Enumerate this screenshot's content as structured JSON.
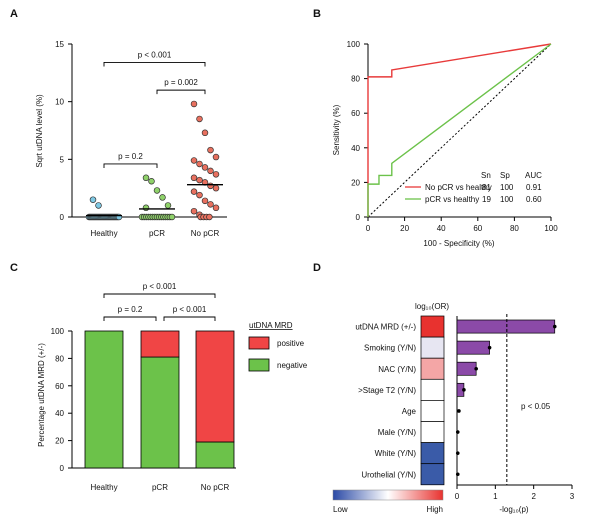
{
  "chart_data": [
    {
      "panel": "A",
      "type": "scatter",
      "ylabel": "Sqrt utDNA level (%)",
      "ylim": [
        0,
        15
      ],
      "yticks": [
        0,
        5,
        10,
        15
      ],
      "categories": [
        "Healthy",
        "pCR",
        "No pCR"
      ],
      "colors": [
        "#7ec8e3",
        "#8fd16a",
        "#e8705f"
      ],
      "groups": [
        {
          "name": "Healthy",
          "mean": 0.12,
          "values": [
            1.5,
            1.0,
            0,
            0,
            0,
            0,
            0,
            0,
            0,
            0,
            0,
            0,
            0,
            0,
            0,
            0,
            0,
            0,
            0,
            0,
            0,
            0,
            0,
            0,
            0,
            0,
            0,
            0,
            0,
            0
          ]
        },
        {
          "name": "pCR",
          "mean": 0.7,
          "values": [
            3.4,
            3.1,
            2.3,
            1.7,
            1.0,
            0.8,
            0,
            0,
            0,
            0,
            0,
            0,
            0,
            0,
            0,
            0,
            0,
            0,
            0,
            0,
            0
          ]
        },
        {
          "name": "No pCR",
          "mean": 2.8,
          "values": [
            9.8,
            8.5,
            7.3,
            5.8,
            5.2,
            4.9,
            4.6,
            4.3,
            4.0,
            3.7,
            3.4,
            3.2,
            3.0,
            2.7,
            2.5,
            2.2,
            1.9,
            1.4,
            1.1,
            0.8,
            0.5,
            0.2,
            0,
            0,
            0,
            0
          ]
        }
      ],
      "comparisons": [
        {
          "label": "p < 0.001",
          "from": "Healthy",
          "to": "No pCR",
          "y": 13.4
        },
        {
          "label": "p = 0.002",
          "from": "pCR",
          "to": "No pCR",
          "y": 11.0
        },
        {
          "label": "p = 0.2",
          "from": "Healthy",
          "to": "pCR",
          "y": 4.6
        }
      ]
    },
    {
      "panel": "B",
      "type": "line",
      "xlabel": "100 - Specificity (%)",
      "ylabel": "Sensitivity (%)",
      "xlim": [
        0,
        100
      ],
      "ylim": [
        0,
        100
      ],
      "xticks": [
        0,
        20,
        40,
        60,
        80,
        100
      ],
      "yticks": [
        0,
        20,
        40,
        60,
        80,
        100
      ],
      "table_headers": [
        "Sn",
        "Sp",
        "AUC"
      ],
      "series": [
        {
          "name": "No pCR vs healthy",
          "color": "#e83a3a",
          "sn": "81",
          "sp": "100",
          "auc": "0.91",
          "x": [
            0,
            0,
            0,
            0,
            13,
            13,
            100
          ],
          "y": [
            0,
            73,
            81,
            81,
            81,
            85,
            100
          ]
        },
        {
          "name": "pCR vs healthy",
          "color": "#6cc24a",
          "sn": "19",
          "sp": "100",
          "auc": "0.60",
          "x": [
            0,
            0,
            6,
            6,
            13,
            13,
            100
          ],
          "y": [
            0,
            19,
            19,
            24,
            24,
            31,
            100
          ]
        }
      ],
      "reference_line": {
        "x": [
          0,
          100
        ],
        "y": [
          0,
          100
        ]
      }
    },
    {
      "panel": "C",
      "type": "bar",
      "stacked": true,
      "ylabel": "Percentage utDNA MRD (+/-)",
      "ylim": [
        0,
        100
      ],
      "yticks": [
        0,
        20,
        40,
        60,
        80,
        100
      ],
      "categories": [
        "Healthy",
        "pCR",
        "No pCR"
      ],
      "legend_title": "utDNA MRD",
      "series": [
        {
          "name": "negative",
          "color": "#6cc24a",
          "values": [
            100,
            81,
            19
          ]
        },
        {
          "name": "positive",
          "color": "#f04545",
          "values": [
            0,
            19,
            81
          ]
        }
      ],
      "comparisons": [
        {
          "label": "p < 0.001",
          "from": "Healthy",
          "to": "No pCR"
        },
        {
          "label": "p = 0.2",
          "from": "Healthy",
          "to": "pCR"
        },
        {
          "label": "p < 0.001",
          "from": "pCR",
          "to": "No pCR"
        }
      ]
    },
    {
      "panel": "D",
      "type": "bar",
      "orientation": "horizontal",
      "heatmap_title": "log₁₀(OR)",
      "xlabel": "-log₁₀(p)",
      "xlim": [
        0,
        3
      ],
      "xticks": [
        0,
        1,
        2,
        3
      ],
      "threshold": 1.3,
      "threshold_label": "p < 0.05",
      "colorbar_low": "Low",
      "colorbar_high": "High",
      "bar_color": "#8b4aa8",
      "categories": [
        "utDNA MRD (+/-)",
        "Smoking (Y/N)",
        "NAC (Y/N)",
        ">Stage T2 (Y/N)",
        "Age",
        "Male (Y/N)",
        "White (Y/N)",
        "Urothelial (Y/N)"
      ],
      "values": [
        2.55,
        0.85,
        0.5,
        0.18,
        0.05,
        0.02,
        0.02,
        0.02
      ],
      "heat_colors": [
        "#e8322f",
        "#e7e6f2",
        "#f4a6a6",
        "#ffffff",
        "#ffffff",
        "#ffffff",
        "#3a5ba8",
        "#3a5ba8"
      ]
    }
  ],
  "panel_labels": [
    "A",
    "B",
    "C",
    "D"
  ]
}
